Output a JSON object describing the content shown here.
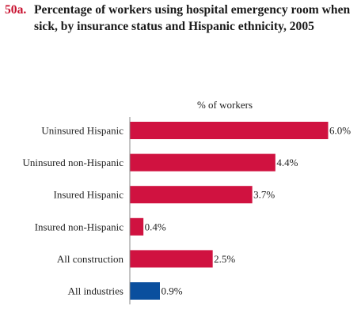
{
  "figure": {
    "number": "50a.",
    "title": "Percentage of workers using hospital emergency room when sick, by insurance status and Hispanic ethnicity, 2005"
  },
  "colors": {
    "figure_number": "#c8102e",
    "construction_bars": "#d01240",
    "all_industries_bar": "#0a4f9e"
  },
  "chart_data": {
    "type": "bar",
    "orientation": "horizontal",
    "xlabel": "% of workers",
    "categories": [
      "Uninsured Hispanic",
      "Uninsured non-Hispanic",
      "Insured Hispanic",
      "Insured non-Hispanic",
      "All construction",
      "All industries"
    ],
    "values": [
      6.0,
      4.4,
      3.7,
      0.4,
      2.5,
      0.9
    ],
    "value_labels": [
      "6.0%",
      "4.4%",
      "3.7%",
      "0.4%",
      "2.5%",
      "0.9%"
    ],
    "bar_colors": [
      "#d01240",
      "#d01240",
      "#d01240",
      "#d01240",
      "#d01240",
      "#0a4f9e"
    ],
    "xlim": [
      0,
      6.0
    ],
    "grid": false,
    "legend": "none"
  }
}
